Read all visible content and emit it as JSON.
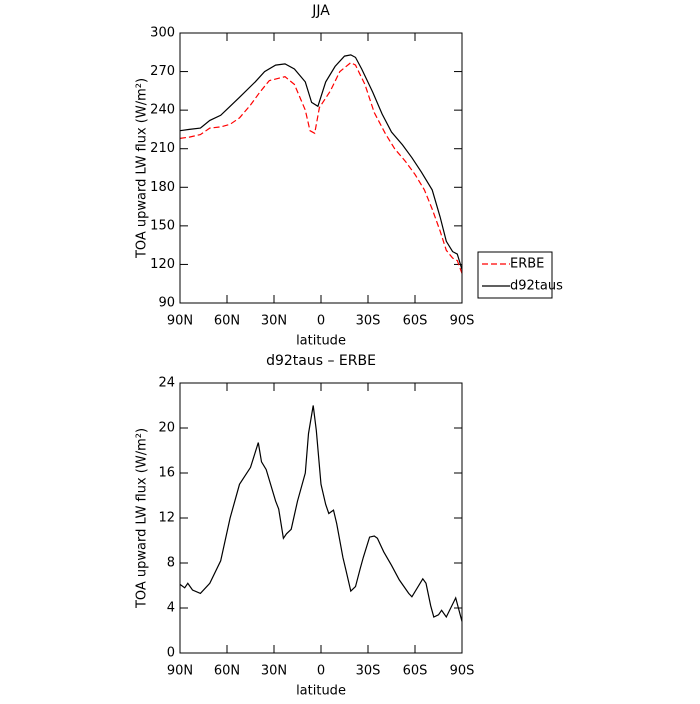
{
  "chart_data": [
    {
      "type": "line",
      "title": "JJA",
      "xlabel": "latitude",
      "ylabel": "TOA upward LW flux (W/m²)",
      "xlim": [
        90,
        -90
      ],
      "xticks": [
        {
          "value": 90,
          "label": "90N"
        },
        {
          "value": 60,
          "label": "60N"
        },
        {
          "value": 30,
          "label": "30N"
        },
        0,
        {
          "value": -30,
          "label": "30S"
        },
        {
          "value": -60,
          "label": "60S"
        },
        {
          "value": -90,
          "label": "90S"
        }
      ],
      "ylim": [
        90,
        300
      ],
      "yticks": [
        90,
        120,
        150,
        180,
        210,
        240,
        270,
        300
      ],
      "legend": "right",
      "series": [
        {
          "name": "ERBE",
          "color": "#ff0000",
          "dashed": true,
          "x": [
            90,
            84,
            77,
            71,
            64,
            58,
            52,
            45,
            39,
            33,
            23,
            17,
            10,
            7,
            4,
            1,
            -6,
            -12,
            -19,
            -22,
            -28,
            -34,
            -41,
            -47,
            -54,
            -60,
            -66,
            -71,
            -76,
            -80,
            -84,
            -87,
            -90
          ],
          "values": [
            218,
            219,
            221,
            226,
            227,
            229,
            234,
            244,
            254,
            263,
            266,
            260,
            240,
            224,
            222,
            242,
            255,
            270,
            277,
            275,
            260,
            238,
            222,
            210,
            200,
            190,
            178,
            163,
            146,
            131,
            125,
            123,
            113
          ]
        },
        {
          "name": "d92taus",
          "color": "#000000",
          "dashed": false,
          "x": [
            90,
            84,
            77,
            71,
            64,
            58,
            52,
            42,
            36,
            29,
            23,
            17,
            10,
            6,
            2,
            -3,
            -9,
            -15,
            -19,
            -22,
            -26,
            -33,
            -39,
            -45,
            -52,
            -58,
            -64,
            -71,
            -76,
            -80,
            -84,
            -87,
            -90
          ],
          "values": [
            224,
            225,
            226,
            232,
            236,
            243,
            250,
            262,
            270,
            275,
            276,
            272,
            262,
            246,
            243,
            262,
            274,
            282,
            283,
            281,
            272,
            254,
            237,
            223,
            213,
            203,
            192,
            178,
            157,
            138,
            130,
            128,
            116
          ]
        }
      ]
    },
    {
      "type": "line",
      "title": "d92taus – ERBE",
      "xlabel": "latitude",
      "ylabel": "TOA upward LW flux (W/m²)",
      "xlim": [
        90,
        -90
      ],
      "xticks": [
        {
          "value": 90,
          "label": "90N"
        },
        {
          "value": 60,
          "label": "60N"
        },
        {
          "value": 30,
          "label": "30N"
        },
        0,
        {
          "value": -30,
          "label": "30S"
        },
        {
          "value": -60,
          "label": "60S"
        },
        {
          "value": -90,
          "label": "90S"
        }
      ],
      "ylim": [
        0,
        24
      ],
      "yticks": [
        0,
        4,
        8,
        12,
        16,
        20,
        24
      ],
      "color": "#000000",
      "x": [
        90,
        87,
        85,
        82,
        77,
        71,
        64,
        58,
        52,
        45,
        40,
        38,
        35,
        29,
        27,
        24,
        22,
        19,
        15,
        10,
        8,
        5,
        3,
        0,
        -3,
        -5,
        -8,
        -10,
        -14,
        -16,
        -19,
        -22,
        -25,
        -27,
        -31,
        -34,
        -36,
        -40,
        -45,
        -50,
        -56,
        -58,
        -65,
        -67,
        -70,
        -72,
        -75,
        -77,
        -80,
        -86,
        -90
      ],
      "values": [
        6.1,
        5.8,
        6.2,
        5.6,
        5.3,
        6.2,
        8.2,
        12,
        15,
        16.5,
        18.7,
        17,
        16.3,
        13.5,
        12.8,
        10.2,
        10.6,
        11,
        13.5,
        16,
        19.5,
        22,
        19.8,
        15,
        13.2,
        12.4,
        12.7,
        11.5,
        8.5,
        7.3,
        5.5,
        5.9,
        7.5,
        8.5,
        10.3,
        10.4,
        10.2,
        9,
        7.8,
        6.5,
        5.3,
        5,
        6.6,
        6.2,
        4.2,
        3.2,
        3.4,
        3.8,
        3.2,
        4.9,
        2.8
      ]
    }
  ]
}
